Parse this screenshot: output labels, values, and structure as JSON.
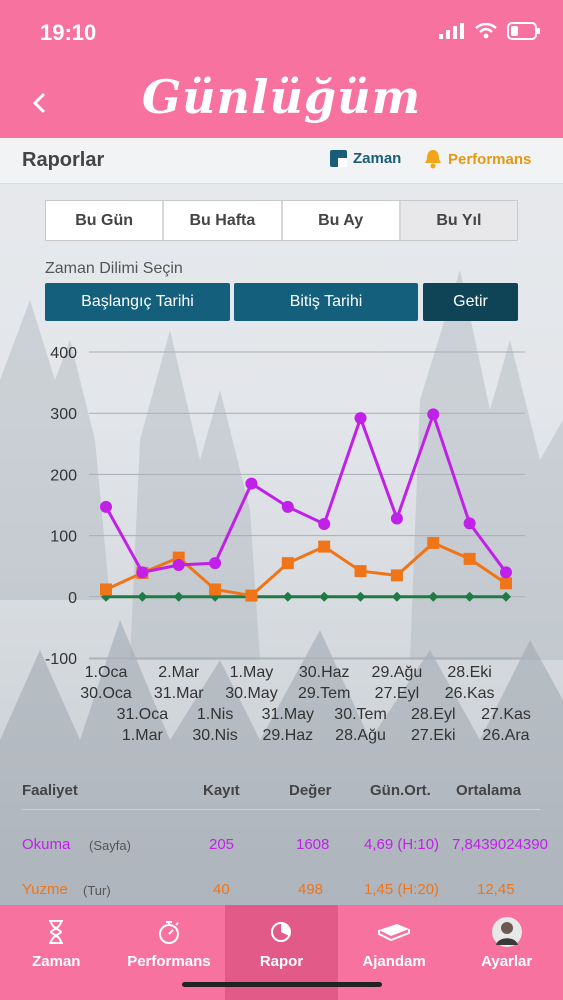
{
  "status": {
    "time": "19:10"
  },
  "header": {
    "title": "Günlüğüm"
  },
  "subheader": {
    "title": "Raporlar",
    "tab_time": "Zaman",
    "tab_performance": "Performans"
  },
  "periods": [
    "Bu Gün",
    "Bu Hafta",
    "Bu Ay",
    "Bu Yıl"
  ],
  "range": {
    "label": "Zaman Dilimi Seçin",
    "start": "Başlangıç Tarihi",
    "end": "Bitiş Tarihi",
    "fetch": "Getir"
  },
  "colors": {
    "pink": "#f7729f",
    "okuma": "#c020e8",
    "yuzme": "#f07518",
    "third": "#1f7a44",
    "button": "#135f7c",
    "button_dark": "#0f4456"
  },
  "chart_data": {
    "type": "line",
    "ylim": [
      -100,
      400
    ],
    "yticks": [
      -100,
      0,
      100,
      200,
      300,
      400
    ],
    "x_tick_labels": [
      [
        "1.Oca",
        "30.Oca"
      ],
      [
        "31.Oca",
        "1.Mar"
      ],
      [
        "2.Mar",
        "31.Mar"
      ],
      [
        "1.Nis",
        "30.Nis"
      ],
      [
        "1.May",
        "30.May"
      ],
      [
        "31.May",
        "29.Haz"
      ],
      [
        "30.Haz",
        "29.Tem"
      ],
      [
        "30.Tem",
        "28.Ağu"
      ],
      [
        "29.Ağu",
        "27.Eyl"
      ],
      [
        "28.Eyl",
        "27.Eki"
      ],
      [
        "28.Eki",
        "26.Kas"
      ],
      [
        "27.Kas",
        "26.Ara"
      ]
    ],
    "grid": true,
    "series": [
      {
        "color": "#c020e8",
        "marker": "circle",
        "values": [
          147,
          40,
          52,
          55,
          185,
          147,
          119,
          292,
          128,
          298,
          120,
          40
        ]
      },
      {
        "color": "#f07518",
        "marker": "square",
        "values": [
          12,
          39,
          64,
          12,
          2,
          55,
          82,
          42,
          35,
          88,
          62,
          22
        ]
      },
      {
        "color": "#1f7a44",
        "marker": "diamond",
        "values": [
          0,
          0,
          0,
          0,
          0,
          0,
          0,
          0,
          0,
          0,
          0,
          0
        ]
      }
    ]
  },
  "table": {
    "headers": [
      "Faaliyet",
      "Kayıt",
      "Değer",
      "Gün.Ort.",
      "Ortalama"
    ],
    "rows": [
      {
        "name": "Okuma",
        "unit": "(Sayfa)",
        "kayit": "205",
        "deger": "1608",
        "gun_ort": "4,69 (H:10)",
        "ortalama": "7,8439024390"
      },
      {
        "name": "Yuzme",
        "unit": "(Tur)",
        "kayit": "40",
        "deger": "498",
        "gun_ort": "1,45 (H:20)",
        "ortalama": "12,45"
      }
    ]
  },
  "nav": [
    "Zaman",
    "Performans",
    "Rapor",
    "Ajandam",
    "Ayarlar"
  ]
}
